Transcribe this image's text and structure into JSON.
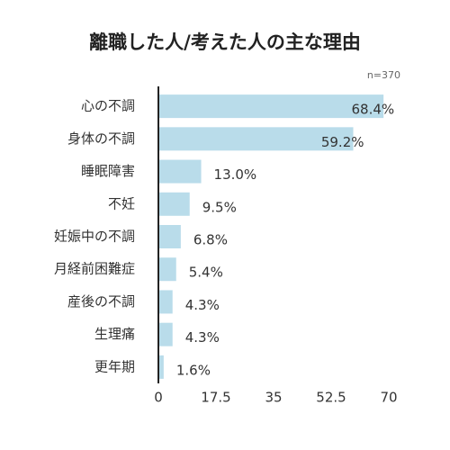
{
  "chart_data": {
    "type": "bar",
    "orientation": "horizontal",
    "title": "離職した人/考えた人の主な理由",
    "note": "n=370",
    "categories": [
      "心の不調",
      "身体の不調",
      "睡眠障害",
      "不妊",
      "妊娠中の不調",
      "月経前困難症",
      "産後の不調",
      "生理痛",
      "更年期"
    ],
    "values": [
      68.4,
      59.2,
      13.0,
      9.5,
      6.8,
      5.4,
      4.3,
      4.3,
      1.6
    ],
    "value_labels": [
      "68.4%",
      "59.2%",
      "13.0%",
      "9.5%",
      "6.8%",
      "5.4%",
      "4.3%",
      "4.3%",
      "1.6%"
    ],
    "color": "#b9dcea",
    "xlim": [
      0,
      70
    ],
    "xticks": [
      0,
      17.5,
      35,
      52.5,
      70
    ]
  }
}
